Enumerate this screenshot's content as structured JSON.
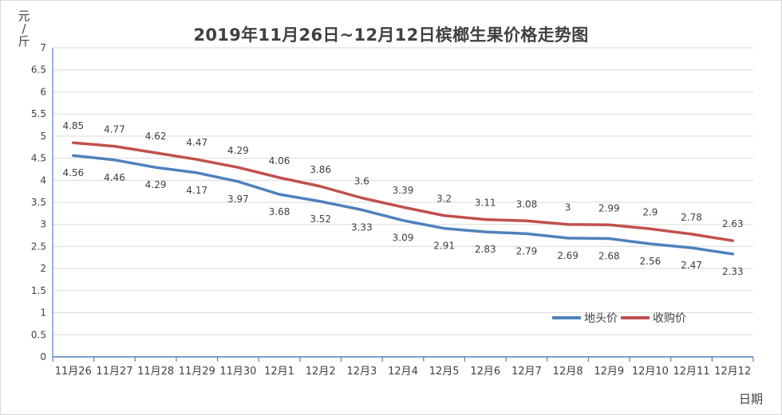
{
  "chart_data": {
    "type": "line",
    "title": "2019年11月26日~12月12日槟榔生果价格走势图",
    "ylabel": "元/斤",
    "xlabel": "日期",
    "ylim": [
      0,
      7
    ],
    "ytick_step": 0.5,
    "categories": [
      "11月26",
      "11月27",
      "11月28",
      "11月29",
      "11月30",
      "12月1",
      "12月2",
      "12月3",
      "12月4",
      "12月5",
      "12月6",
      "12月7",
      "12月8",
      "12月9",
      "12月10",
      "12月11",
      "12月12"
    ],
    "series": [
      {
        "name": "地头价",
        "color": "#4f81bd",
        "values": [
          4.56,
          4.46,
          4.29,
          4.17,
          3.97,
          3.68,
          3.52,
          3.33,
          3.09,
          2.91,
          2.83,
          2.79,
          2.69,
          2.68,
          2.56,
          2.47,
          2.33
        ]
      },
      {
        "name": "收购价",
        "color": "#c0504d",
        "values": [
          4.85,
          4.77,
          4.62,
          4.47,
          4.29,
          4.06,
          3.86,
          3.6,
          3.39,
          3.2,
          3.11,
          3.08,
          3,
          2.99,
          2.9,
          2.78,
          2.63
        ]
      }
    ],
    "grid": true,
    "legend_position": "bottom-right"
  }
}
